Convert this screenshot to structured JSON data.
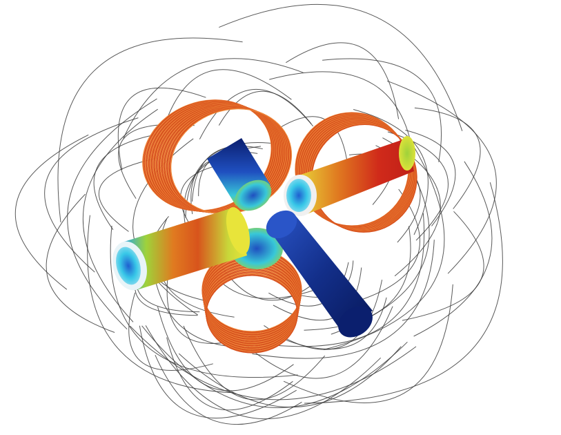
{
  "scene": {
    "subject": "electromagnetic-coil-assembly",
    "components": {
      "coils": [
        "coil-top-left",
        "coil-right",
        "coil-bottom"
      ],
      "rods": [
        "rod-left",
        "rod-right",
        "rod-top-back",
        "rod-front-dark"
      ],
      "field_lines": "magnetic-field-streamlines"
    },
    "colors": {
      "background": "#ffffff",
      "coil_wire": "#d8521e",
      "coil_wire_light": "#f08a3a",
      "field_line": "#3a3a3a",
      "rod_dark": "#0b1f6e",
      "rod_blue": "#1f5fd0",
      "rod_cyan": "#38c8d8",
      "rod_green": "#9fd23a",
      "rod_yellow": "#e8d83a",
      "rod_orange": "#e07a20",
      "rod_red": "#d02a1a"
    }
  }
}
